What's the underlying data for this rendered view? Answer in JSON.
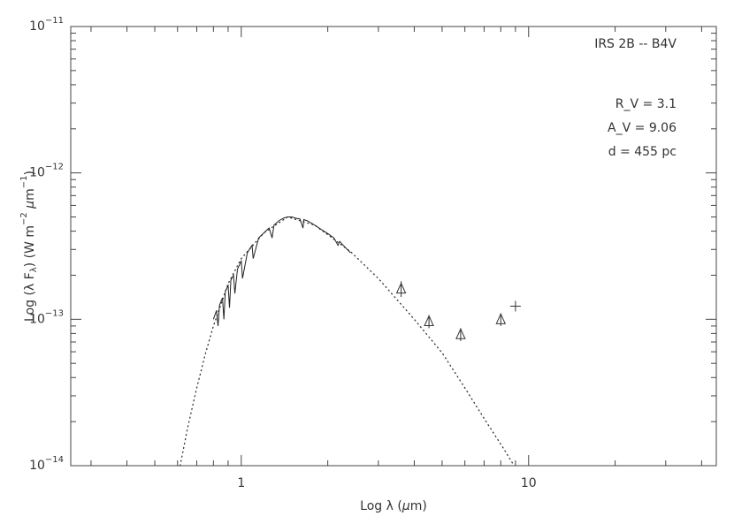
{
  "chart_data": {
    "type": "line",
    "xlabel": [
      {
        "text": "Log λ ("
      },
      {
        "text": "μ",
        "italic": true
      },
      {
        "text": "m)"
      }
    ],
    "ylabel": [
      {
        "text": "Log (λ F"
      },
      {
        "text": "λ",
        "sub": true
      },
      {
        "text": ") (W m"
      },
      {
        "text": "−2",
        "sup": true
      },
      {
        "text": " "
      },
      {
        "text": "μ",
        "italic": true
      },
      {
        "text": "m"
      },
      {
        "text": "−1",
        "sup": true
      },
      {
        "text": ")"
      }
    ],
    "annotations": [
      "IRS 2B -- B4V",
      "R_V = 3.1",
      "A_V = 9.06",
      "d = 455 pc"
    ],
    "xscale": "log",
    "yscale": "log",
    "xlim": [
      0.255,
      45
    ],
    "ylim": [
      1e-14,
      1e-11
    ],
    "xticks": [
      1,
      10
    ],
    "xminorticks": [
      0.3,
      0.4,
      0.5,
      0.6,
      0.7,
      0.8,
      0.9,
      2,
      3,
      4,
      5,
      6,
      7,
      8,
      9,
      20,
      30,
      40
    ],
    "yticks": [
      {
        "value": 1e-14,
        "label": "10",
        "exponent": "−14"
      },
      {
        "value": 1e-13,
        "label": "10",
        "exponent": "−13"
      },
      {
        "value": 1e-12,
        "label": "10",
        "exponent": "−12"
      },
      {
        "value": 1e-11,
        "label": "10",
        "exponent": "−11"
      }
    ],
    "yminorticks": [
      2e-14,
      3e-14,
      4e-14,
      5e-14,
      6e-14,
      7e-14,
      8e-14,
      9e-14,
      2e-13,
      3e-13,
      4e-13,
      5e-13,
      6e-13,
      7e-13,
      8e-13,
      9e-13,
      2e-12,
      3e-12,
      4e-12,
      5e-12,
      6e-12,
      7e-12,
      8e-12,
      9e-12
    ],
    "series": [
      {
        "style": "dotted",
        "color": "#333333",
        "x": [
          0.613,
          0.65,
          0.7,
          0.75,
          0.8,
          0.9,
          1.0,
          1.2,
          1.45,
          1.8,
          2.4,
          3,
          4,
          5,
          6,
          7,
          8.2,
          8.9
        ],
        "values": [
          1e-14,
          1.8e-14,
          3.4e-14,
          5.8e-14,
          9e-14,
          1.75e-13,
          2.6e-13,
          3.9e-13,
          5e-13,
          4.4e-13,
          2.9e-13,
          1.9e-13,
          1e-13,
          5.9e-14,
          3.4e-14,
          2.1e-14,
          1.3e-14,
          1e-14
        ]
      },
      {
        "style": "solid",
        "color": "#222222",
        "x": [
          0.8,
          0.82,
          0.83,
          0.84,
          0.86,
          0.87,
          0.88,
          0.9,
          0.91,
          0.92,
          0.94,
          0.95,
          0.97,
          1.0,
          1.01,
          1.05,
          1.09,
          1.1,
          1.15,
          1.2,
          1.25,
          1.28,
          1.3,
          1.35,
          1.4,
          1.45,
          1.5,
          1.55,
          1.6,
          1.64,
          1.65,
          1.7,
          1.8,
          1.9,
          2.0,
          2.1,
          2.17,
          2.2,
          2.3,
          2.4
        ],
        "values": [
          1e-13,
          1.15e-13,
          9e-14,
          1.25e-13,
          1.4e-13,
          1e-13,
          1.55e-13,
          1.7e-13,
          1.2e-13,
          1.85e-13,
          2e-13,
          1.5e-13,
          2.2e-13,
          2.5e-13,
          1.9e-13,
          2.85e-13,
          3.2e-13,
          2.6e-13,
          3.6e-13,
          3.9e-13,
          4.2e-13,
          3.6e-13,
          4.4e-13,
          4.7e-13,
          4.9e-13,
          5e-13,
          5e-13,
          4.9e-13,
          4.85e-13,
          4.2e-13,
          4.8e-13,
          4.7e-13,
          4.4e-13,
          4.1e-13,
          3.85e-13,
          3.6e-13,
          3.2e-13,
          3.4e-13,
          3.1e-13,
          2.85e-13
        ]
      },
      {
        "style": "markers",
        "marker": "triangle",
        "color": "#333333",
        "x": [
          3.6,
          4.5,
          5.8,
          8.0
        ],
        "values": [
          1.62e-13,
          9.7e-14,
          7.9e-14,
          1e-13
        ],
        "errors": [
          2e-14,
          1e-14,
          8e-15,
          1e-14
        ]
      },
      {
        "style": "markers",
        "marker": "plus",
        "color": "#333333",
        "x": [
          9.0
        ],
        "values": [
          1.23e-13
        ]
      }
    ]
  }
}
